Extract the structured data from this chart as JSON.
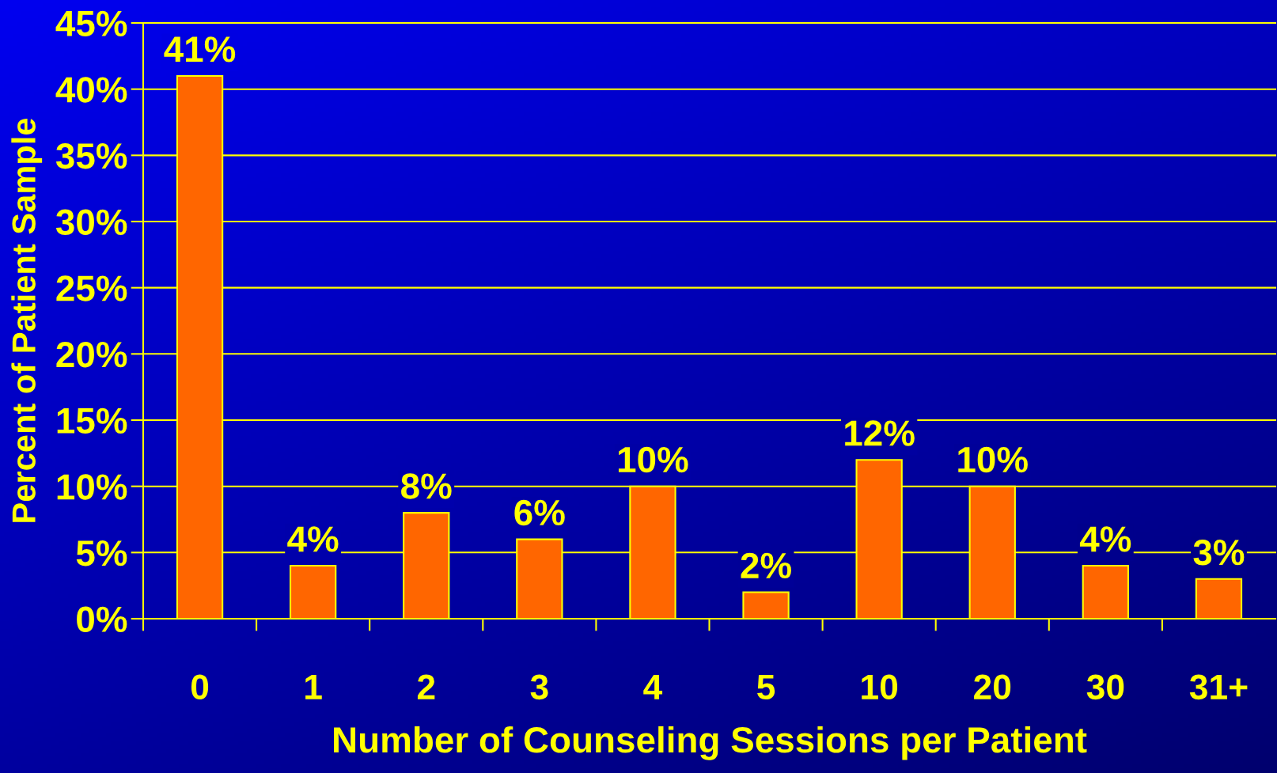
{
  "chart_data": {
    "type": "bar",
    "xlabel": "Number of Counseling Sessions per Patient",
    "ylabel": "Percent of Patient Sample",
    "categories": [
      "0",
      "1",
      "2",
      "3",
      "4",
      "5",
      "10",
      "20",
      "30",
      "31+"
    ],
    "values": [
      41,
      4,
      8,
      6,
      10,
      2,
      12,
      10,
      4,
      3
    ],
    "value_labels": [
      "41%",
      "4%",
      "8%",
      "6%",
      "10%",
      "2%",
      "12%",
      "10%",
      "4%",
      "3%"
    ],
    "color": "#ff6600",
    "ylim": [
      0,
      45
    ],
    "yticks": [
      {
        "value": 0,
        "label": "0%"
      },
      {
        "value": 5,
        "label": "5%"
      },
      {
        "value": 10,
        "label": "10%"
      },
      {
        "value": 15,
        "label": "15%"
      },
      {
        "value": 20,
        "label": "20%"
      },
      {
        "value": 25,
        "label": "25%"
      },
      {
        "value": 30,
        "label": "30%"
      },
      {
        "value": 35,
        "label": "35%"
      },
      {
        "value": 40,
        "label": "40%"
      },
      {
        "value": 45,
        "label": "45%"
      }
    ],
    "grid": "y"
  }
}
